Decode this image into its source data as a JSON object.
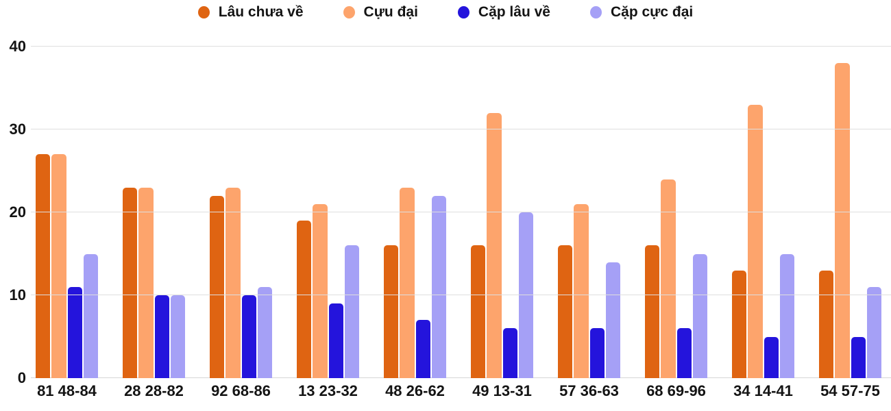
{
  "chart_data": {
    "type": "bar",
    "title": "",
    "xlabel": "",
    "ylabel": "",
    "ylim": [
      0,
      40
    ],
    "yticks": [
      0,
      10,
      20,
      30,
      40
    ],
    "grid": true,
    "legend_position": "top",
    "background_color": "#ffffff",
    "gridline_color": "#dedede",
    "text_color": "#141414",
    "categories": [
      "81 48-84",
      "28 28-82",
      "92 68-86",
      "13 23-32",
      "48 26-62",
      "49 13-31",
      "57 36-63",
      "68 69-96",
      "34 14-41",
      "54 57-75"
    ],
    "series": [
      {
        "name": "Lâu chưa về",
        "color": "#df6412",
        "values": [
          27,
          23,
          22,
          19,
          16,
          16,
          16,
          16,
          13,
          13
        ]
      },
      {
        "name": "Cựu đại",
        "color": "#fda46c",
        "values": [
          27,
          23,
          23,
          21,
          23,
          32,
          21,
          24,
          33,
          38
        ]
      },
      {
        "name": "Cặp lâu về",
        "color": "#2414dc",
        "values": [
          11,
          10,
          10,
          9,
          7,
          6,
          6,
          6,
          5,
          5
        ]
      },
      {
        "name": "Cặp cực đại",
        "color": "#a5a0f6",
        "values": [
          15,
          10,
          11,
          16,
          22,
          20,
          14,
          15,
          15,
          11
        ]
      }
    ]
  }
}
